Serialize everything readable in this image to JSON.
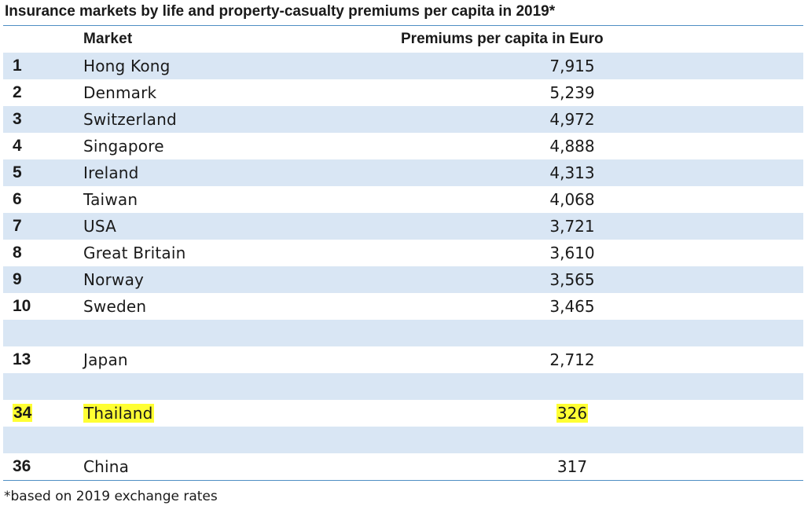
{
  "title": "Insurance markets by life and property-casualty premiums per capita in 2019*",
  "footnote": "*based on 2019 exchange rates",
  "colors": {
    "header_rule": "#4f8ec4",
    "row_shade": "#d9e6f4",
    "highlight": "#ffff33"
  },
  "chart_data": {
    "type": "table",
    "title": "Insurance markets by life and property-casualty premiums per capita in 2019*",
    "columns": [
      "",
      "Market",
      "Premiums per capita in Euro"
    ],
    "rows": [
      {
        "rank": "1",
        "market": "Hong Kong",
        "value": "7,915",
        "highlight": false
      },
      {
        "rank": "2",
        "market": "Denmark",
        "value": "5,239",
        "highlight": false
      },
      {
        "rank": "3",
        "market": "Switzerland",
        "value": "4,972",
        "highlight": false
      },
      {
        "rank": "4",
        "market": "Singapore",
        "value": "4,888",
        "highlight": false
      },
      {
        "rank": "5",
        "market": "Ireland",
        "value": "4,313",
        "highlight": false
      },
      {
        "rank": "6",
        "market": "Taiwan",
        "value": "4,068",
        "highlight": false
      },
      {
        "rank": "7",
        "market": "USA",
        "value": "3,721",
        "highlight": false
      },
      {
        "rank": "8",
        "market": "Great Britain",
        "value": "3,610",
        "highlight": false
      },
      {
        "rank": "9",
        "market": "Norway",
        "value": "3,565",
        "highlight": false
      },
      {
        "rank": "10",
        "market": "Sweden",
        "value": "3,465",
        "highlight": false
      },
      {
        "rank": "",
        "market": "",
        "value": "",
        "highlight": false
      },
      {
        "rank": "13",
        "market": "Japan",
        "value": "2,712",
        "highlight": false
      },
      {
        "rank": "",
        "market": "",
        "value": "",
        "highlight": false
      },
      {
        "rank": "34",
        "market": "Thailand",
        "value": "326",
        "highlight": true
      },
      {
        "rank": "",
        "market": "",
        "value": "",
        "highlight": false
      },
      {
        "rank": "36",
        "market": "China",
        "value": "317",
        "highlight": false
      }
    ],
    "footnote": "*based on 2019 exchange rates"
  }
}
